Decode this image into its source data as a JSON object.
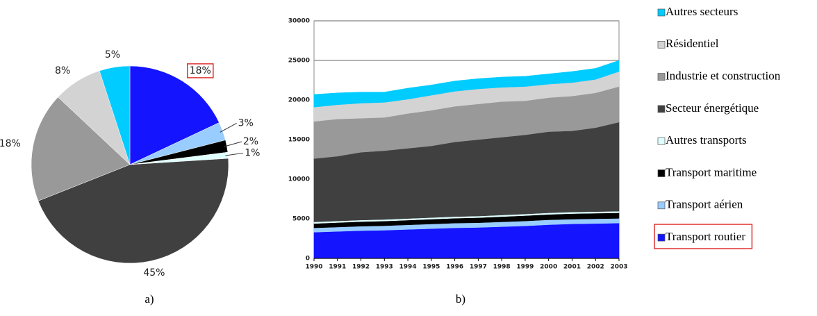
{
  "chart_data": [
    {
      "type": "pie",
      "caption": "a)",
      "values": [
        18,
        3,
        2,
        1,
        45,
        18,
        8,
        5
      ],
      "value_labels": [
        "18%",
        "3%",
        "2%",
        "1%",
        "45%",
        "18%",
        "8%",
        "5%"
      ],
      "colors": [
        "#1414ff",
        "#99ccff",
        "#000000",
        "#e0ffff",
        "#404040",
        "#999999",
        "#d3d3d3",
        "#00ccff"
      ]
    },
    {
      "type": "area",
      "caption": "b)",
      "x": [
        1990,
        1991,
        1992,
        1993,
        1994,
        1995,
        1996,
        1997,
        1998,
        1999,
        2000,
        2001,
        2002,
        2003
      ],
      "xlim": [
        1990,
        2003
      ],
      "ylim": [
        0,
        30000
      ],
      "yticks": [
        0,
        5000,
        10000,
        15000,
        20000,
        25000,
        30000
      ],
      "grid": true,
      "series": [
        {
          "name": "Transport routier",
          "color": "#1414ff",
          "values": [
            3300,
            3400,
            3500,
            3550,
            3650,
            3750,
            3850,
            3900,
            4000,
            4100,
            4250,
            4350,
            4400,
            4450
          ]
        },
        {
          "name": "Transport aérien",
          "color": "#99ccff",
          "values": [
            550,
            550,
            560,
            570,
            580,
            590,
            600,
            600,
            610,
            620,
            620,
            600,
            600,
            600
          ]
        },
        {
          "name": "Transport maritime",
          "color": "#000000",
          "values": [
            550,
            570,
            580,
            590,
            600,
            610,
            620,
            640,
            660,
            680,
            680,
            700,
            700,
            700
          ]
        },
        {
          "name": "Autres transports",
          "color": "#e0ffff",
          "values": [
            200,
            200,
            200,
            200,
            200,
            200,
            200,
            200,
            200,
            200,
            200,
            200,
            200,
            200
          ]
        },
        {
          "name": "Secteur énergétique",
          "color": "#404040",
          "values": [
            8000,
            8180,
            8560,
            8690,
            8870,
            9050,
            9430,
            9660,
            9830,
            10000,
            10250,
            10250,
            10600,
            11250
          ]
        },
        {
          "name": "Industrie et construction",
          "color": "#999999",
          "values": [
            4700,
            4700,
            4300,
            4200,
            4400,
            4500,
            4500,
            4500,
            4500,
            4300,
            4300,
            4400,
            4400,
            4500
          ]
        },
        {
          "name": "Résidentiel",
          "color": "#d3d3d3",
          "values": [
            1800,
            1800,
            1900,
            1900,
            1800,
            1900,
            1900,
            1900,
            1800,
            1800,
            1700,
            1700,
            1700,
            1900
          ]
        },
        {
          "name": "Autres secteurs",
          "color": "#00ccff",
          "values": [
            1600,
            1500,
            1400,
            1300,
            1400,
            1300,
            1300,
            1300,
            1300,
            1300,
            1300,
            1400,
            1400,
            1400
          ]
        }
      ]
    }
  ]
}
